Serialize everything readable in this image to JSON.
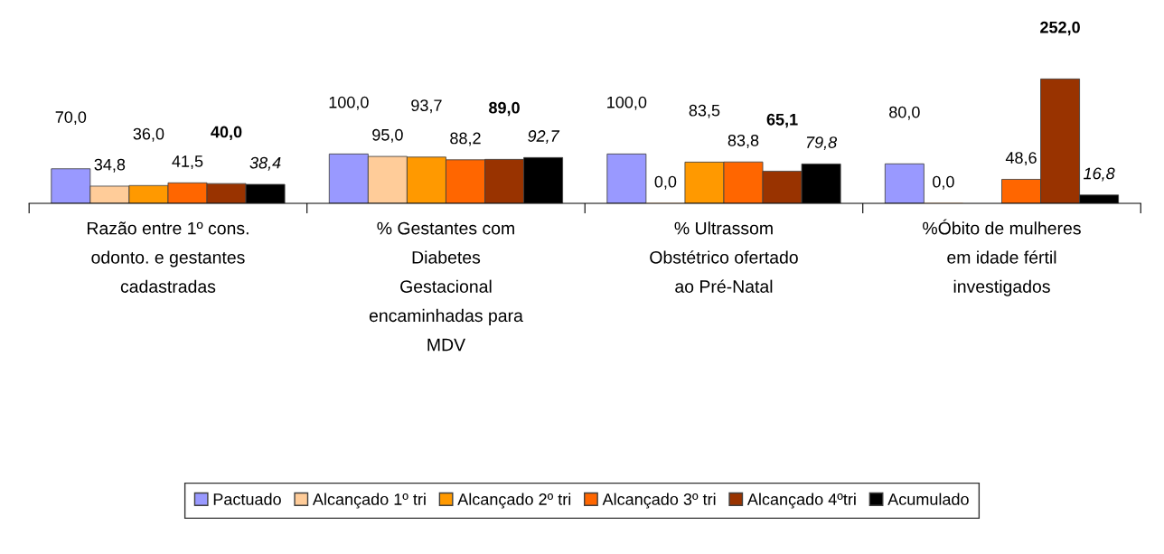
{
  "chart_data": {
    "type": "bar",
    "categories": [
      "Razão entre 1º cons.\nodonto. e gestantes\ncadastradas",
      "% Gestantes com\nDiabetes\nGestacional\nencaminhadas para\nMDV",
      "% Ultrassom\nObstétrico ofertado\nao Pré-Natal",
      "%Óbito de mulheres\nem idade fértil\ninvestigados"
    ],
    "series": [
      {
        "name": "Pactuado",
        "color": "#9999ff",
        "values": [
          70.0,
          100.0,
          100.0,
          80.0
        ],
        "value_labels": [
          "70,0",
          "100,0",
          "100,0",
          "80,0"
        ]
      },
      {
        "name": "Alcançado 1º tri",
        "color": "#ffcc99",
        "values": [
          34.8,
          95.0,
          0.0,
          0.0
        ],
        "value_labels": [
          "34,8",
          "95,0",
          "0,0",
          "0,0"
        ]
      },
      {
        "name": "Alcançado 2º tri",
        "color": "#ff9900",
        "values": [
          36.0,
          93.7,
          83.5,
          null
        ],
        "value_labels": [
          "36,0",
          "93,7",
          "83,5",
          null
        ]
      },
      {
        "name": "Alcançado 3º tri",
        "color": "#ff6600",
        "values": [
          41.5,
          88.2,
          83.8,
          48.6
        ],
        "value_labels": [
          "41,5",
          "88,2",
          "83,8",
          "48,6"
        ]
      },
      {
        "name": "Alcançado 4ºtri",
        "color": "#993300",
        "values": [
          40.0,
          89.0,
          65.1,
          252.0
        ],
        "value_labels": [
          "40,0",
          "89,0",
          "65,1",
          "252,0"
        ]
      },
      {
        "name": "Acumulado",
        "color": "#000000",
        "values": [
          38.4,
          92.7,
          79.8,
          16.8
        ],
        "value_labels": [
          "38,4",
          "92,7",
          "79,8",
          "16,8"
        ]
      }
    ],
    "legend": "bottom",
    "grid": false
  }
}
